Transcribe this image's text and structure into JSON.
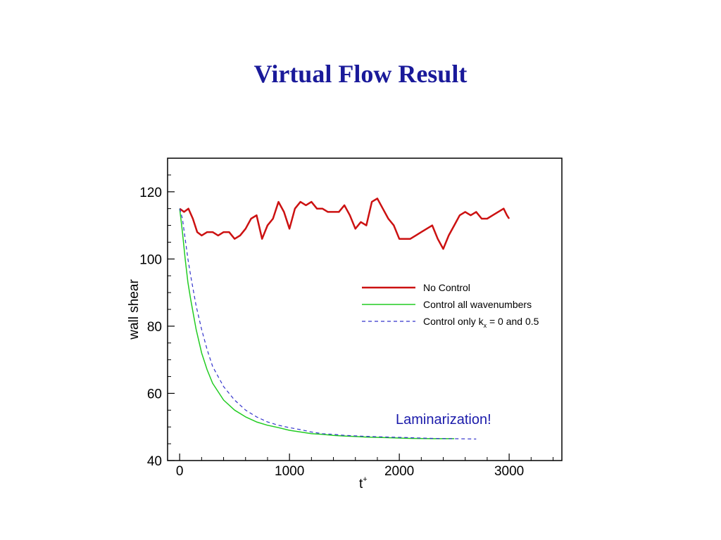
{
  "slide": {
    "title": "Virtual Flow Result"
  },
  "chart_data": {
    "type": "line",
    "xlabel": "t",
    "xlabel_superscript": "+",
    "ylabel": "wall shear",
    "xlim": [
      -110,
      3480
    ],
    "ylim": [
      40,
      130
    ],
    "xticks": [
      0,
      1000,
      2000,
      3000
    ],
    "yticks": [
      40,
      60,
      80,
      100,
      120
    ],
    "x_minor_step": 200,
    "y_minor_step": 5,
    "grid": false,
    "legend_position": "right-center",
    "annotation": {
      "text": "Laminarization!",
      "x": 2000,
      "y": 53,
      "color": "#1a1aaa"
    },
    "series": [
      {
        "name": "No Control",
        "color": "#cc1111",
        "style": "solid",
        "width": 2.5,
        "x": [
          0,
          40,
          80,
          120,
          160,
          200,
          250,
          300,
          350,
          400,
          450,
          500,
          550,
          600,
          650,
          700,
          750,
          800,
          850,
          900,
          950,
          1000,
          1050,
          1100,
          1150,
          1200,
          1250,
          1300,
          1350,
          1400,
          1450,
          1500,
          1550,
          1600,
          1650,
          1700,
          1750,
          1800,
          1850,
          1900,
          1950,
          2000,
          2050,
          2100,
          2150,
          2200,
          2250,
          2300,
          2350,
          2400,
          2450,
          2500,
          2550,
          2600,
          2650,
          2700,
          2750,
          2800,
          2850,
          2900,
          2950,
          2980,
          3000
        ],
        "values": [
          115,
          114,
          115,
          112,
          108,
          107,
          108,
          108,
          107,
          108,
          108,
          106,
          107,
          109,
          112,
          113,
          106,
          110,
          112,
          117,
          114,
          109,
          115,
          117,
          116,
          117,
          115,
          115,
          114,
          114,
          114,
          116,
          113,
          109,
          111,
          110,
          117,
          118,
          115,
          112,
          110,
          106,
          106,
          106,
          107,
          108,
          109,
          110,
          106,
          103,
          107,
          110,
          113,
          114,
          113,
          114,
          112,
          112,
          113,
          114,
          115,
          113,
          112
        ]
      },
      {
        "name": "Control all wavenumbers",
        "color": "#22cc22",
        "style": "solid",
        "width": 1.5,
        "x": [
          0,
          25,
          50,
          75,
          100,
          150,
          200,
          250,
          300,
          400,
          500,
          600,
          700,
          800,
          900,
          1000,
          1100,
          1200,
          1300,
          1400,
          1500,
          1700,
          1900,
          2100,
          2300,
          2500
        ],
        "values": [
          115,
          108,
          100,
          93,
          88,
          79,
          72,
          67,
          63,
          58,
          55,
          53,
          51.5,
          50.5,
          49.8,
          49,
          48.5,
          48,
          47.8,
          47.5,
          47.3,
          47,
          46.8,
          46.6,
          46.5,
          46.5
        ]
      },
      {
        "name": "Control only k",
        "name_subscript": "x",
        "name_suffix": " = 0 and 0.5",
        "color": "#3333cc",
        "style": "dashed",
        "width": 1.2,
        "x": [
          0,
          25,
          50,
          75,
          100,
          150,
          200,
          250,
          300,
          400,
          500,
          600,
          700,
          800,
          900,
          1000,
          1100,
          1200,
          1300,
          1400,
          1500,
          1700,
          1900,
          2100,
          2300,
          2500,
          2700
        ],
        "values": [
          115,
          112,
          106,
          100,
          95,
          86,
          79,
          73,
          68,
          62,
          58,
          55,
          53,
          51.5,
          50.5,
          49.8,
          49.2,
          48.5,
          48,
          47.8,
          47.5,
          47.2,
          47,
          46.8,
          46.6,
          46.5,
          46.4
        ]
      }
    ]
  }
}
